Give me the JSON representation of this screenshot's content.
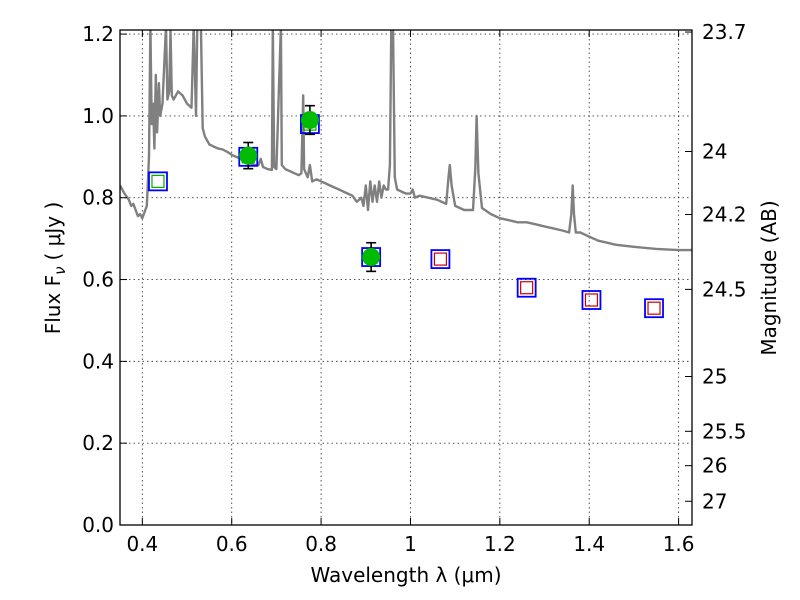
{
  "chart_data": {
    "type": "scatter",
    "xlabel": "Wavelength  λ (μm)",
    "ylabel": "Flux  F",
    "ylabel_subscript": "ν",
    "ylabel_units": "( μJy )",
    "y2label": "Magnitude (AB)",
    "xlim": [
      0.35,
      1.63
    ],
    "ylim": [
      0.0,
      1.21
    ],
    "x_ticks": [
      0.4,
      0.6,
      0.8,
      1.0,
      1.2,
      1.4,
      1.6
    ],
    "x_tick_labels": [
      "0.4",
      "0.6",
      "0.8",
      "1",
      "1.2",
      "1.4",
      "1.6"
    ],
    "y_ticks": [
      0.0,
      0.2,
      0.4,
      0.6,
      0.8,
      1.0,
      1.2
    ],
    "y_tick_labels": [
      "0.0",
      "0.2",
      "0.4",
      "0.6",
      "0.8",
      "1.0",
      "1.2"
    ],
    "y2_ticks": [
      {
        "label": "23.7",
        "flux": 1.205
      },
      {
        "label": "24",
        "flux": 0.913
      },
      {
        "label": "24.2",
        "flux": 0.759
      },
      {
        "label": "24.5",
        "flux": 0.576
      },
      {
        "label": "25",
        "flux": 0.363
      },
      {
        "label": "25.5",
        "flux": 0.229
      },
      {
        "label": "26",
        "flux": 0.145
      },
      {
        "label": "27",
        "flux": 0.058
      }
    ],
    "grid": true,
    "colors": {
      "sed": "#808080",
      "box_outer": "#0000ff",
      "box_inner_optical": "#00aa00",
      "box_inner_ir": "#cc0000",
      "measured": "#00bb00",
      "errorbar": "#000000"
    },
    "series": [
      {
        "kind": "model-boxes",
        "points": [
          {
            "x": 0.435,
            "y": 0.84,
            "inner": "green"
          },
          {
            "x": 0.637,
            "y": 0.9,
            "inner": "green"
          },
          {
            "x": 0.775,
            "y": 0.98,
            "inner": "green"
          },
          {
            "x": 0.912,
            "y": 0.655,
            "inner": "green"
          },
          {
            "x": 1.067,
            "y": 0.65,
            "inner": "red"
          },
          {
            "x": 1.26,
            "y": 0.58,
            "inner": "red"
          },
          {
            "x": 1.405,
            "y": 0.55,
            "inner": "red"
          },
          {
            "x": 1.545,
            "y": 0.53,
            "inner": "red"
          }
        ]
      },
      {
        "kind": "measured",
        "points": [
          {
            "x": 0.637,
            "y": 0.903,
            "err": 0.032
          },
          {
            "x": 0.775,
            "y": 0.99,
            "err": 0.035
          },
          {
            "x": 0.912,
            "y": 0.655,
            "err": 0.035
          }
        ]
      },
      {
        "kind": "sed-line",
        "points": [
          [
            0.35,
            0.83
          ],
          [
            0.36,
            0.81
          ],
          [
            0.37,
            0.795
          ],
          [
            0.375,
            0.78
          ],
          [
            0.38,
            0.785
          ],
          [
            0.385,
            0.77
          ],
          [
            0.39,
            0.755
          ],
          [
            0.395,
            0.76
          ],
          [
            0.4,
            0.75
          ],
          [
            0.41,
            0.78
          ],
          [
            0.415,
            0.9
          ],
          [
            0.418,
            1.22
          ],
          [
            0.421,
            0.98
          ],
          [
            0.424,
            1.03
          ],
          [
            0.427,
            0.92
          ],
          [
            0.43,
            1.1
          ],
          [
            0.433,
            0.96
          ],
          [
            0.437,
            1.08
          ],
          [
            0.44,
            1.0
          ],
          [
            0.445,
            1.03
          ],
          [
            0.45,
            1.15
          ],
          [
            0.453,
            1.22
          ],
          [
            0.456,
            1.04
          ],
          [
            0.46,
            1.06
          ],
          [
            0.463,
            1.21
          ],
          [
            0.466,
            1.05
          ],
          [
            0.47,
            1.04
          ],
          [
            0.48,
            1.06
          ],
          [
            0.49,
            1.05
          ],
          [
            0.5,
            1.03
          ],
          [
            0.51,
            1.02
          ],
          [
            0.515,
            1.22
          ],
          [
            0.52,
            1.0
          ],
          [
            0.523,
            1.22
          ],
          [
            0.527,
            1.22
          ],
          [
            0.531,
            1.22
          ],
          [
            0.535,
            0.97
          ],
          [
            0.54,
            0.95
          ],
          [
            0.55,
            0.93
          ],
          [
            0.56,
            0.925
          ],
          [
            0.57,
            0.92
          ],
          [
            0.58,
            0.918
          ],
          [
            0.59,
            0.912
          ],
          [
            0.6,
            0.905
          ],
          [
            0.61,
            0.9
          ],
          [
            0.62,
            0.895
          ],
          [
            0.63,
            0.89
          ],
          [
            0.64,
            0.885
          ],
          [
            0.65,
            0.88
          ],
          [
            0.66,
            0.88
          ],
          [
            0.665,
            0.895
          ],
          [
            0.67,
            0.875
          ],
          [
            0.68,
            0.87
          ],
          [
            0.69,
            0.868
          ],
          [
            0.692,
            1.22
          ],
          [
            0.695,
            0.875
          ],
          [
            0.7,
            0.87
          ],
          [
            0.71,
            1.22
          ],
          [
            0.712,
            0.88
          ],
          [
            0.72,
            0.87
          ],
          [
            0.73,
            0.865
          ],
          [
            0.74,
            0.86
          ],
          [
            0.75,
            0.855
          ],
          [
            0.756,
            0.86
          ],
          [
            0.76,
            1.05
          ],
          [
            0.762,
            0.87
          ],
          [
            0.77,
            0.85
          ],
          [
            0.775,
            0.88
          ],
          [
            0.78,
            0.84
          ],
          [
            0.79,
            0.845
          ],
          [
            0.8,
            0.84
          ],
          [
            0.81,
            0.835
          ],
          [
            0.82,
            0.83
          ],
          [
            0.83,
            0.825
          ],
          [
            0.84,
            0.82
          ],
          [
            0.85,
            0.815
          ],
          [
            0.86,
            0.81
          ],
          [
            0.87,
            0.805
          ],
          [
            0.88,
            0.79
          ],
          [
            0.89,
            0.8
          ],
          [
            0.895,
            0.78
          ],
          [
            0.9,
            0.83
          ],
          [
            0.905,
            0.77
          ],
          [
            0.91,
            0.84
          ],
          [
            0.915,
            0.79
          ],
          [
            0.92,
            0.83
          ],
          [
            0.925,
            0.79
          ],
          [
            0.93,
            0.84
          ],
          [
            0.935,
            0.8
          ],
          [
            0.94,
            0.83
          ],
          [
            0.945,
            0.82
          ],
          [
            0.95,
            0.82
          ],
          [
            0.954,
            0.88
          ],
          [
            0.957,
            1.22
          ],
          [
            0.961,
            1.22
          ],
          [
            0.965,
            0.85
          ],
          [
            0.97,
            0.82
          ],
          [
            0.98,
            0.815
          ],
          [
            0.99,
            0.81
          ],
          [
            1.0,
            0.81
          ],
          [
            1.005,
            0.82
          ],
          [
            1.01,
            0.8
          ],
          [
            1.02,
            0.805
          ],
          [
            1.04,
            0.8
          ],
          [
            1.06,
            0.795
          ],
          [
            1.08,
            0.785
          ],
          [
            1.085,
            0.85
          ],
          [
            1.088,
            0.88
          ],
          [
            1.092,
            0.83
          ],
          [
            1.1,
            0.78
          ],
          [
            1.12,
            0.77
          ],
          [
            1.14,
            0.77
          ],
          [
            1.145,
            0.87
          ],
          [
            1.148,
            1.0
          ],
          [
            1.152,
            0.86
          ],
          [
            1.16,
            0.775
          ],
          [
            1.18,
            0.76
          ],
          [
            1.2,
            0.75
          ],
          [
            1.22,
            0.745
          ],
          [
            1.24,
            0.74
          ],
          [
            1.26,
            0.74
          ],
          [
            1.28,
            0.735
          ],
          [
            1.3,
            0.73
          ],
          [
            1.32,
            0.725
          ],
          [
            1.34,
            0.72
          ],
          [
            1.355,
            0.715
          ],
          [
            1.36,
            0.76
          ],
          [
            1.363,
            0.83
          ],
          [
            1.366,
            0.76
          ],
          [
            1.37,
            0.715
          ],
          [
            1.38,
            0.715
          ],
          [
            1.4,
            0.705
          ],
          [
            1.42,
            0.695
          ],
          [
            1.44,
            0.69
          ],
          [
            1.46,
            0.685
          ],
          [
            1.5,
            0.68
          ],
          [
            1.55,
            0.675
          ],
          [
            1.6,
            0.672
          ],
          [
            1.63,
            0.672
          ]
        ]
      }
    ]
  }
}
